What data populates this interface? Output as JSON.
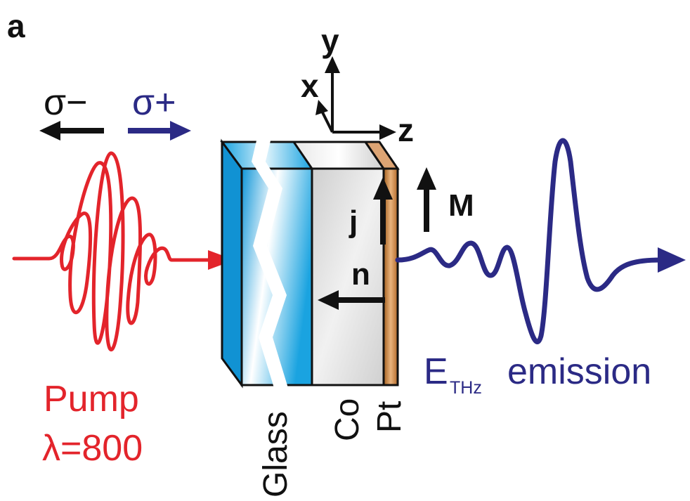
{
  "panel_label": "a",
  "axes": {
    "x": "x",
    "y": "y",
    "z": "z"
  },
  "polarization": {
    "minus": "σ−",
    "plus": "σ+"
  },
  "vectors": {
    "current": "j",
    "normal": "n",
    "magnetization": "M"
  },
  "pump": {
    "label": "Pump",
    "wavelength": "λ=800"
  },
  "emission": {
    "field": "E",
    "subscript": "THz",
    "word": "emission"
  },
  "layers": {
    "glass": "Glass",
    "cobalt": "Co",
    "platinum": "Pt"
  },
  "colors": {
    "pump": "#e3242b",
    "emission": "#2b2a85",
    "black": "#111111",
    "glass_blue": "#1aa3e0",
    "co_gray": "#d6d6d6",
    "pt_copper": "#c07a3a"
  }
}
